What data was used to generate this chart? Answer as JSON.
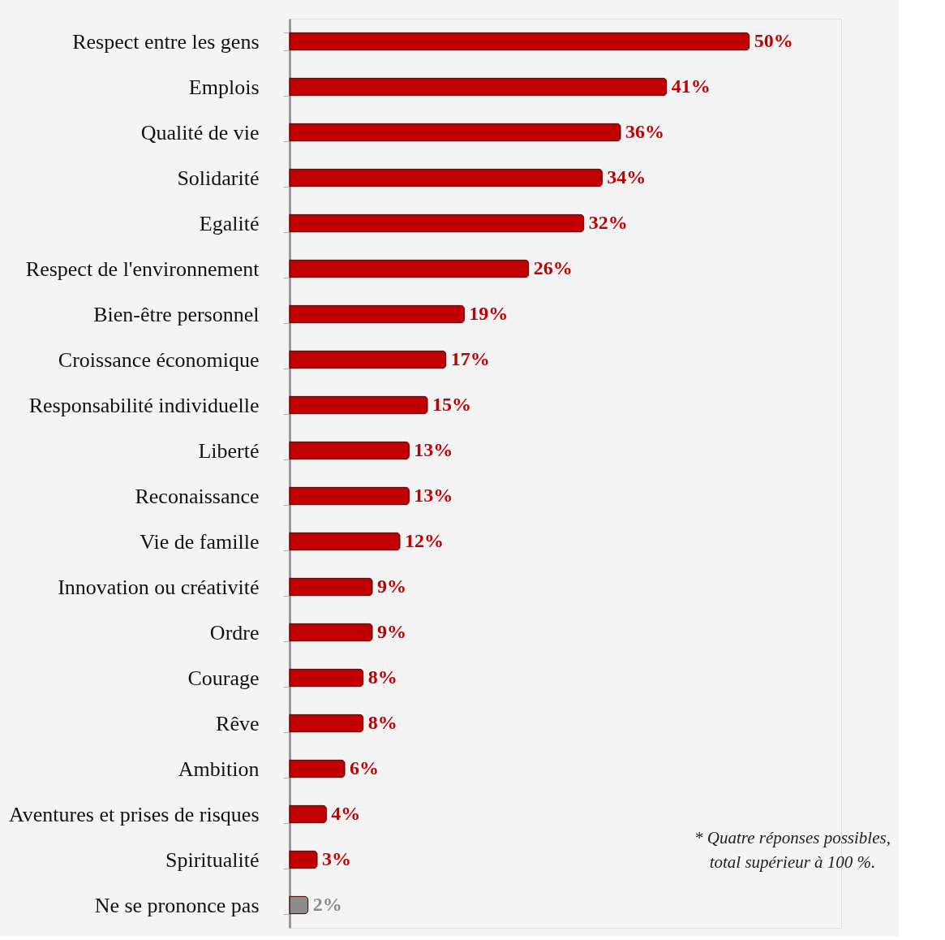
{
  "chart_data": {
    "type": "bar",
    "orientation": "horizontal",
    "categories": [
      "Respect entre les gens",
      "Emplois",
      "Qualité de vie",
      "Solidarité",
      "Egalité",
      "Respect de l'environnement",
      "Bien-être personnel",
      "Croissance économique",
      "Responsabilité individuelle",
      "Liberté",
      "Reconaissance",
      "Vie de famille",
      "Innovation ou créativité",
      "Ordre",
      "Courage",
      "Rêve",
      "Ambition",
      "Aventures et prises de risques",
      "Spiritualité",
      "Ne se prononce pas"
    ],
    "values": [
      50,
      41,
      36,
      34,
      32,
      26,
      19,
      17,
      15,
      13,
      13,
      12,
      9,
      9,
      8,
      8,
      6,
      4,
      3,
      2
    ],
    "value_labels": [
      "50%",
      "41%",
      "36%",
      "34%",
      "32%",
      "26%",
      "19%",
      "17%",
      "15%",
      "13%",
      "13%",
      "12%",
      "9%",
      "9%",
      "8%",
      "8%",
      "6%",
      "4%",
      "3%",
      "2%"
    ],
    "colors": [
      "#c00000",
      "#c00000",
      "#c00000",
      "#c00000",
      "#c00000",
      "#c00000",
      "#c00000",
      "#c00000",
      "#c00000",
      "#c00000",
      "#c00000",
      "#c00000",
      "#c00000",
      "#c00000",
      "#c00000",
      "#c00000",
      "#c00000",
      "#c00000",
      "#c00000",
      "#8c8c8c"
    ],
    "xlim": [
      0,
      60
    ],
    "tick_labels": "y",
    "grid": false,
    "annotations": [
      "* Quatre réponses possibles,",
      "total supérieur à 100 %."
    ]
  }
}
